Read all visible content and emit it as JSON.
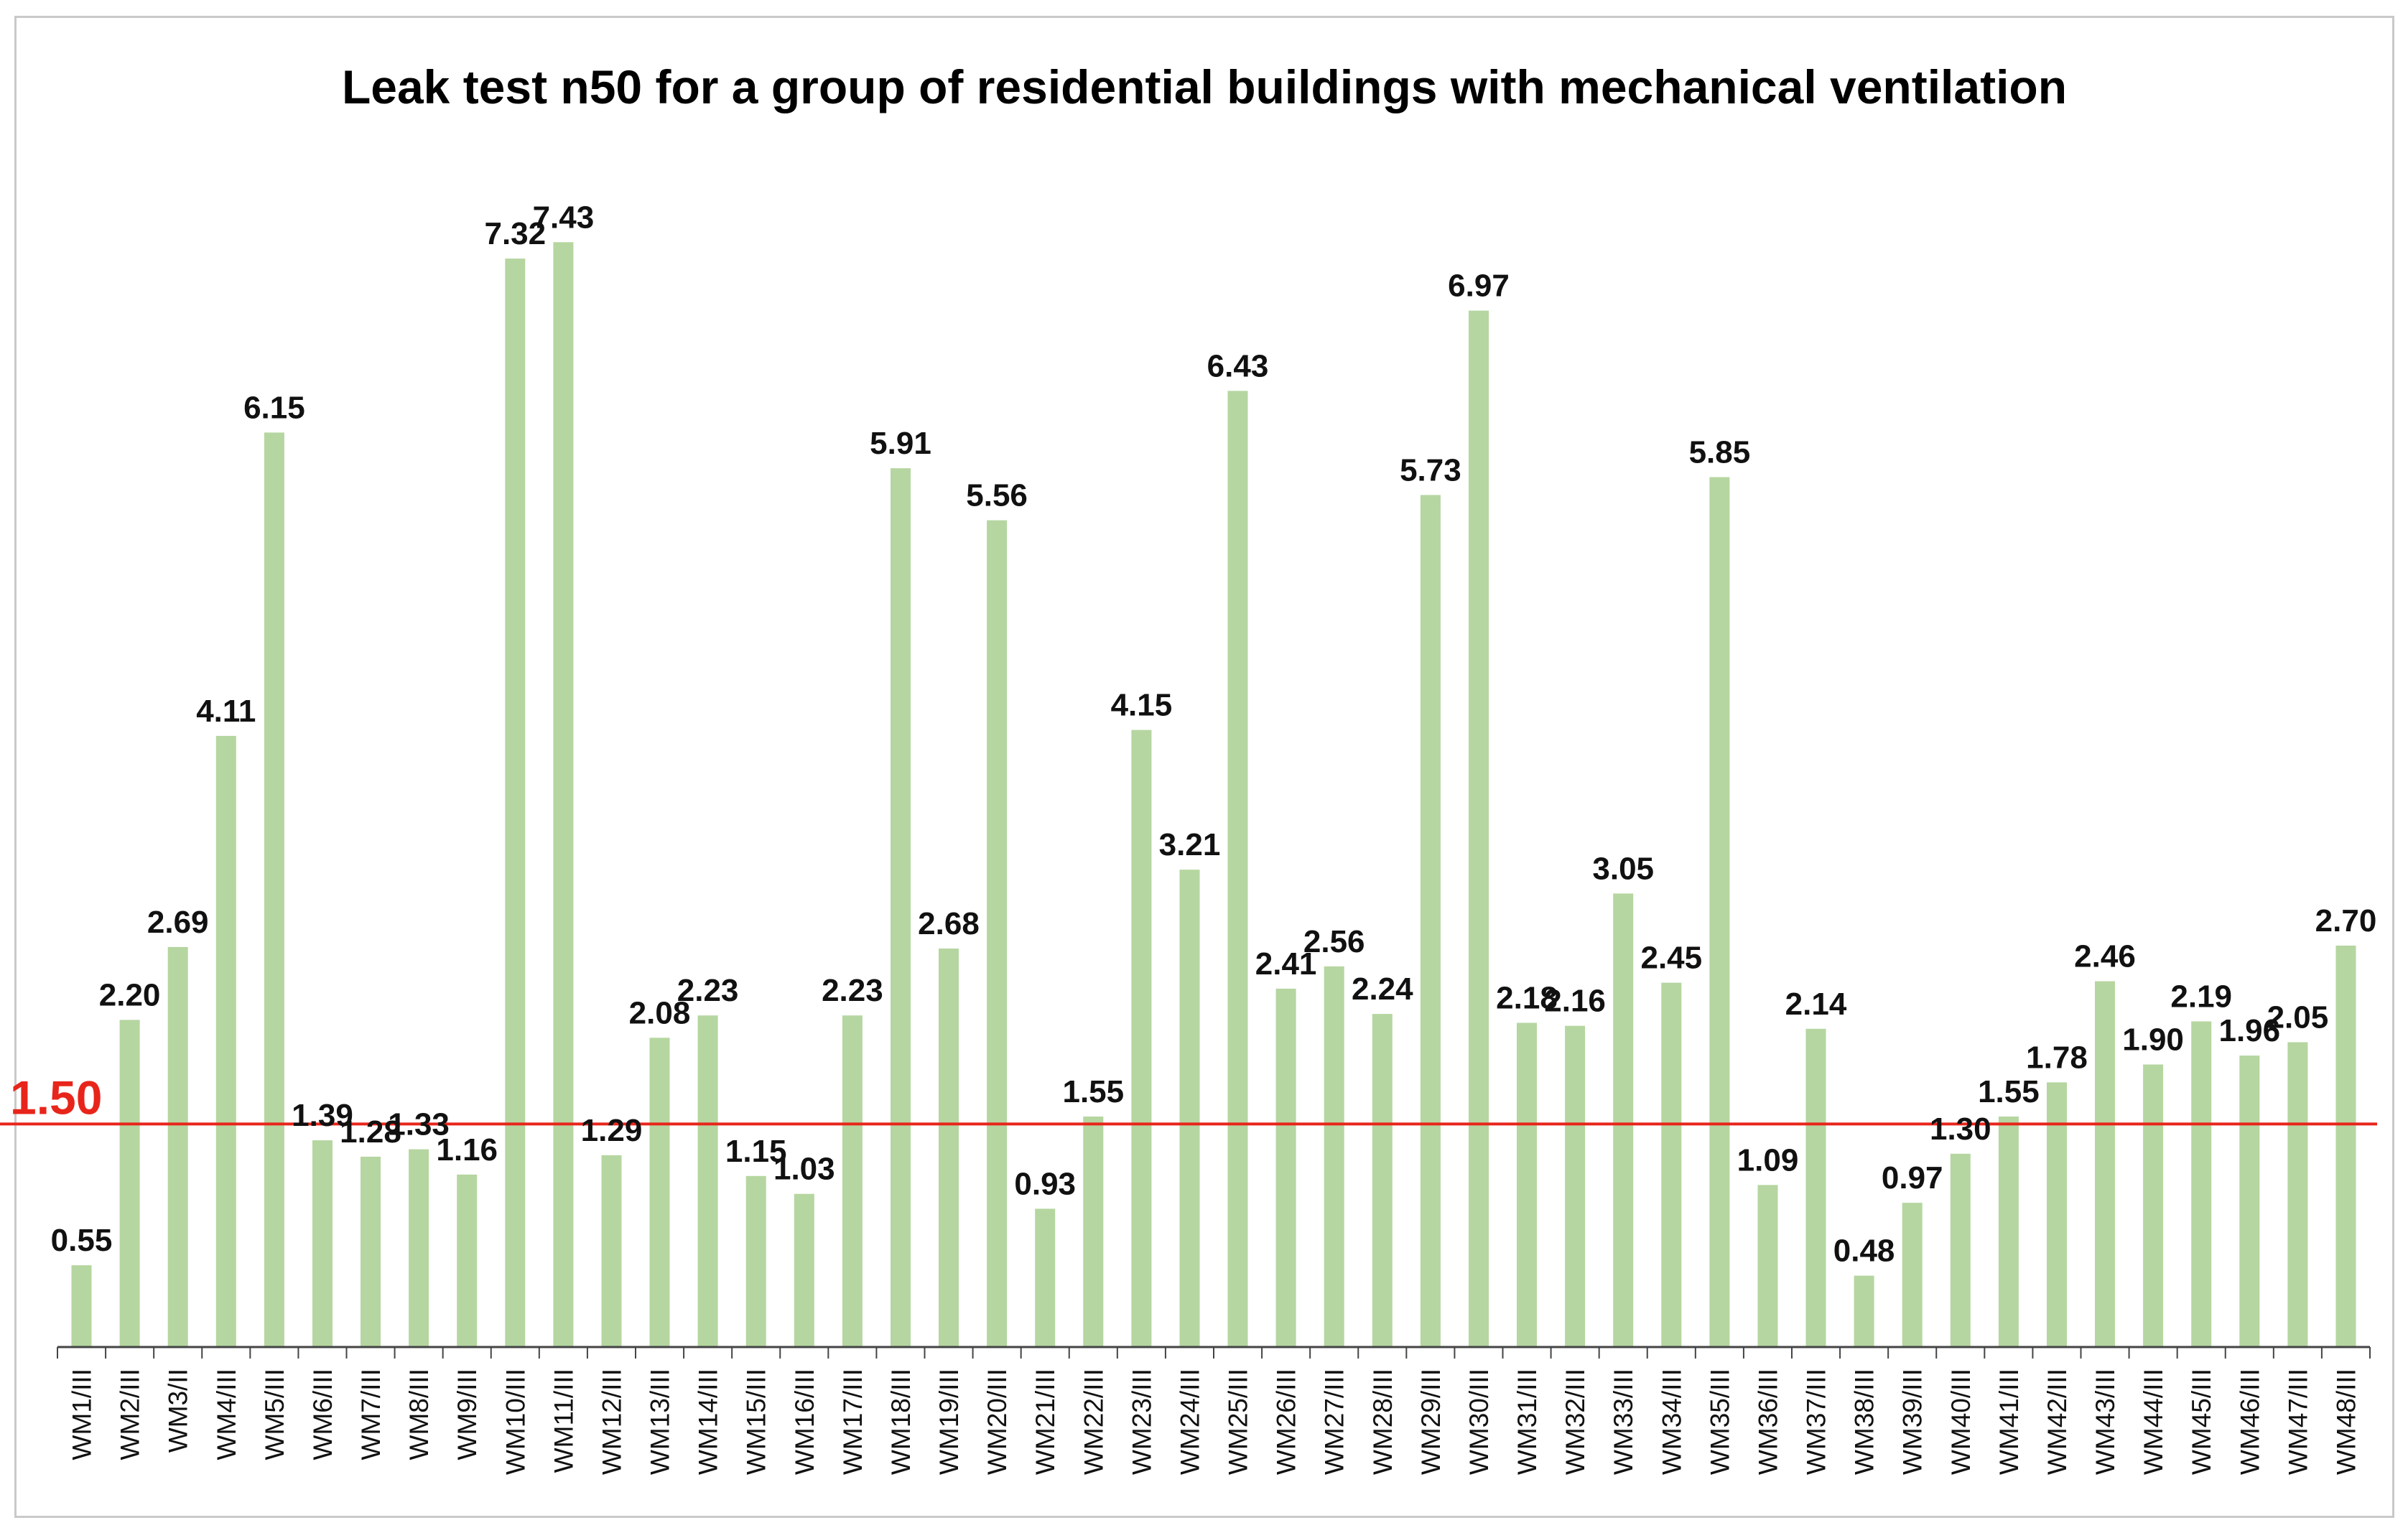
{
  "chart_data": {
    "type": "bar",
    "title": "Leak test n50 for a group of residential buildings with mechanical ventilation",
    "xlabel": "",
    "ylabel": "",
    "ylim": [
      0,
      7.9
    ],
    "grid": false,
    "colors": {
      "bar": "#b5d6a0",
      "reference": "#e8251b",
      "axis": "#444444"
    },
    "reference_line": {
      "value": 1.5,
      "label": "1.50"
    },
    "categories": [
      "WM1/III",
      "WM2/III",
      "WM3/II",
      "WM4/III",
      "WM5/III",
      "WM6/III",
      "WM7/III",
      "WM8/III",
      "WM9/III",
      "WM10/III",
      "WM11/III",
      "WM12/III",
      "WM13/III",
      "WM14/III",
      "WM15/III",
      "WM16/III",
      "WM17/III",
      "WM18/III",
      "WM19/III",
      "WM20/III",
      "WM21/III",
      "WM22/III",
      "WM23/III",
      "WM24/III",
      "WM25/III",
      "WM26/III",
      "WM27/III",
      "WM28/III",
      "WM29/III",
      "WM30/III",
      "WM31/III",
      "WM32/III",
      "WM33/III",
      "WM34/III",
      "WM35/III",
      "WM36/III",
      "WM37/III",
      "WM38/III",
      "WM39/III",
      "WM40/III",
      "WM41/III",
      "WM42/III",
      "WM43/III",
      "WM44/III",
      "WM45/III",
      "WM46/III",
      "WM47/III",
      "WM48/III"
    ],
    "values": [
      0.55,
      2.2,
      2.69,
      4.11,
      6.15,
      1.39,
      1.28,
      1.33,
      1.16,
      7.32,
      7.43,
      1.29,
      2.08,
      2.23,
      1.15,
      1.03,
      2.23,
      5.91,
      2.68,
      5.56,
      0.93,
      1.55,
      4.15,
      3.21,
      6.43,
      2.41,
      2.56,
      2.24,
      5.73,
      6.97,
      2.18,
      2.16,
      3.05,
      2.45,
      5.85,
      1.09,
      2.14,
      0.48,
      0.97,
      1.3,
      1.55,
      1.78,
      2.46,
      1.9,
      2.19,
      1.96,
      2.05,
      2.7
    ],
    "data_labels": [
      "0.55",
      "2.20",
      "2.69",
      "4.11",
      "6.15",
      "1.39",
      "1.28",
      "1.33",
      "1.16",
      "7.32",
      "7.43",
      "1.29",
      "2.08",
      "2.23",
      "1.15",
      "1.03",
      "2.23",
      "5.91",
      "2.68",
      "5.56",
      "0.93",
      "1.55",
      "4.15",
      "3.21",
      "6.43",
      "2.41",
      "2.56",
      "2.24",
      "5.73",
      "6.97",
      "2.18",
      "2.16",
      "3.05",
      "2.45",
      "5.85",
      "1.09",
      "2.14",
      "0.48",
      "0.97",
      "1.30",
      "1.55",
      "1.78",
      "2.46",
      "1.90",
      "2.19",
      "1.96",
      "2.05",
      "2.70"
    ]
  }
}
